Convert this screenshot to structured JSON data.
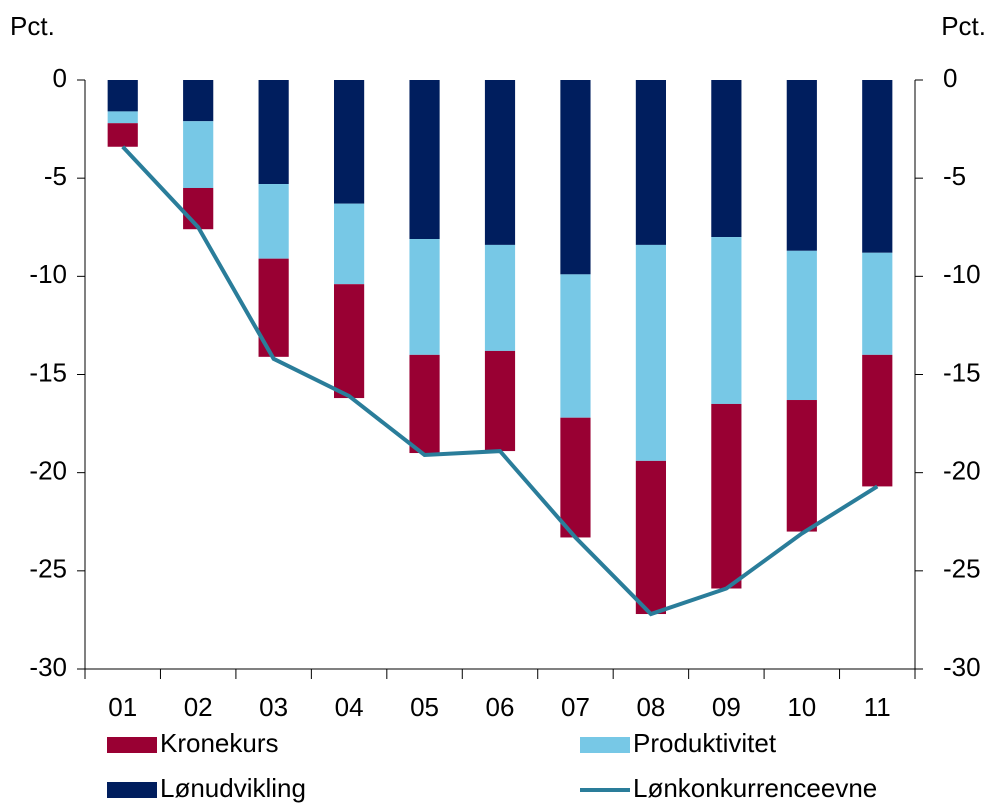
{
  "chart_data": {
    "type": "bar",
    "y_label": "Pct.",
    "y2_label": "Pct.",
    "categories": [
      "01",
      "02",
      "03",
      "04",
      "05",
      "06",
      "07",
      "08",
      "09",
      "10",
      "11"
    ],
    "series": [
      {
        "name": "Kronekurs",
        "type": "bar",
        "color": "#990033",
        "values": [
          -1.2,
          -2.1,
          -5.0,
          -5.8,
          -5.0,
          -5.1,
          -6.1,
          -7.8,
          -9.4,
          -6.7,
          -6.7
        ]
      },
      {
        "name": "Produktivitet",
        "type": "bar",
        "color": "#77c8e6",
        "values": [
          -0.6,
          -3.4,
          -3.8,
          -4.1,
          -5.9,
          -5.4,
          -7.3,
          -11.0,
          -8.5,
          -7.6,
          -5.2
        ]
      },
      {
        "name": "Lønudvikling",
        "type": "bar",
        "color": "#001e5e",
        "values": [
          -1.6,
          -2.1,
          -5.3,
          -6.3,
          -8.1,
          -8.4,
          -9.9,
          -8.4,
          -8.0,
          -8.7,
          -8.8
        ]
      },
      {
        "name": "Lønkonkurrenceevne",
        "type": "line",
        "color": "#2a7d9a",
        "values": [
          -3.4,
          -7.5,
          -14.2,
          -16.1,
          -19.1,
          -18.9,
          -23.3,
          -27.2,
          -25.9,
          -23.1,
          -20.7
        ]
      }
    ],
    "ylim": [
      -30,
      0
    ],
    "yticks": [
      0,
      -5,
      -10,
      -15,
      -20,
      -25,
      -30
    ],
    "y2lim": [
      -30,
      0
    ],
    "y2ticks": [
      0,
      -5,
      -10,
      -15,
      -20,
      -25,
      -30
    ],
    "stacked": true
  }
}
